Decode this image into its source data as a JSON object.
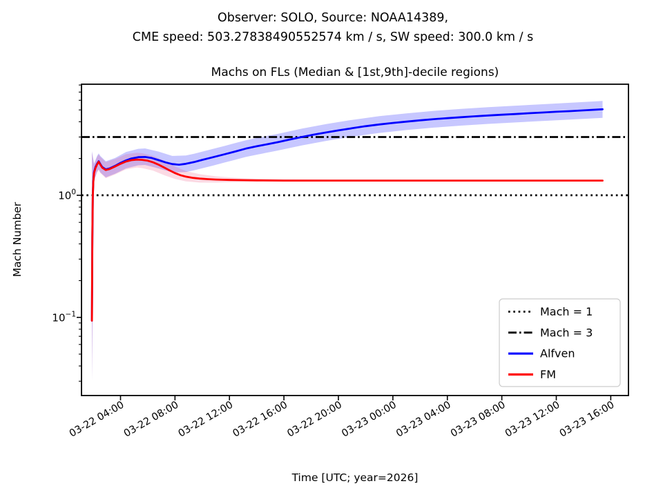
{
  "figure": {
    "suptitle_line1": "Observer: SOLO, Source: NOAA14389,",
    "suptitle_line2": "CME speed: 503.27838490552574 km / s, SW speed: 300.0 km / s",
    "axes_title": "Machs on FLs (Median & [1st,9th]-decile regions)",
    "xlabel": "Time [UTC; year=2026]",
    "ylabel": "Mach Number"
  },
  "legend": {
    "items": [
      {
        "label": "Mach = 1",
        "style": "dotted",
        "color": "#000000"
      },
      {
        "label": "Mach = 3",
        "style": "dashdot",
        "color": "#000000"
      },
      {
        "label": "Alfven",
        "style": "solid",
        "color": "#0000ff"
      },
      {
        "label": "FM",
        "style": "solid",
        "color": "#ff0000"
      }
    ]
  },
  "chart_data": {
    "type": "line",
    "title": "Machs on FLs (Median & [1st,9th]-decile regions)",
    "xlabel": "Time [UTC; year=2026]",
    "ylabel": "Mach Number",
    "x_unit": "hours since 2026-03-22 00:00 UTC",
    "y_scale": "log",
    "xlim": [
      1.135,
      41.3
    ],
    "ylim": [
      0.0229,
      8.12
    ],
    "x_ticks": [
      {
        "t": 4,
        "label": "03-22 04:00"
      },
      {
        "t": 8,
        "label": "03-22 08:00"
      },
      {
        "t": 12,
        "label": "03-22 12:00"
      },
      {
        "t": 16,
        "label": "03-22 16:00"
      },
      {
        "t": 20,
        "label": "03-22 20:00"
      },
      {
        "t": 24,
        "label": "03-23 00:00"
      },
      {
        "t": 28,
        "label": "03-23 04:00"
      },
      {
        "t": 32,
        "label": "03-23 08:00"
      },
      {
        "t": 36,
        "label": "03-23 12:00"
      },
      {
        "t": 40,
        "label": "03-23 16:00"
      }
    ],
    "y_ticks": [
      {
        "v": 1,
        "base": "10",
        "exp": "0"
      },
      {
        "v": 0.1,
        "base": "10",
        "exp": "−1"
      }
    ],
    "y_minor_ticks": [
      0.03,
      0.04,
      0.05,
      0.06,
      0.07,
      0.08,
      0.09,
      0.2,
      0.3,
      0.4,
      0.5,
      0.6,
      0.7,
      0.8,
      0.9,
      2,
      3,
      4,
      5,
      6,
      7,
      8
    ],
    "ref_lines": [
      {
        "label": "Mach = 1",
        "value": 1,
        "style": "dotted",
        "color": "#000000"
      },
      {
        "label": "Mach = 3",
        "value": 3,
        "style": "dashdot",
        "color": "#000000"
      }
    ],
    "series": [
      {
        "name": "Alfven",
        "color": "#0000ff",
        "band_color": "#0000ff",
        "band_alpha": 0.22,
        "points": [
          [
            1.9,
            0.094
          ],
          [
            1.93,
            0.45
          ],
          [
            1.96,
            0.95
          ],
          [
            2.0,
            1.3
          ],
          [
            2.06,
            1.55
          ],
          [
            2.16,
            1.7
          ],
          [
            2.28,
            1.81
          ],
          [
            2.4,
            1.9
          ],
          [
            2.52,
            1.8
          ],
          [
            2.66,
            1.7
          ],
          [
            2.92,
            1.63
          ],
          [
            3.2,
            1.66
          ],
          [
            3.6,
            1.74
          ],
          [
            4.0,
            1.84
          ],
          [
            4.4,
            1.93
          ],
          [
            4.8,
            2.0
          ],
          [
            5.3,
            2.05
          ],
          [
            5.8,
            2.06
          ],
          [
            6.3,
            2.02
          ],
          [
            6.8,
            1.94
          ],
          [
            7.3,
            1.86
          ],
          [
            7.8,
            1.8
          ],
          [
            8.3,
            1.78
          ],
          [
            8.8,
            1.81
          ],
          [
            9.4,
            1.87
          ],
          [
            10.0,
            1.95
          ],
          [
            10.8,
            2.05
          ],
          [
            11.6,
            2.16
          ],
          [
            12.4,
            2.28
          ],
          [
            13.2,
            2.41
          ],
          [
            14.0,
            2.52
          ],
          [
            14.8,
            2.62
          ],
          [
            15.6,
            2.73
          ],
          [
            16.4,
            2.86
          ],
          [
            17.3,
            3.0
          ],
          [
            18.2,
            3.14
          ],
          [
            19.1,
            3.27
          ],
          [
            20.0,
            3.4
          ],
          [
            21.0,
            3.54
          ],
          [
            22.0,
            3.68
          ],
          [
            23.0,
            3.8
          ],
          [
            24.0,
            3.91
          ],
          [
            25.0,
            4.01
          ],
          [
            26.0,
            4.11
          ],
          [
            27.0,
            4.2
          ],
          [
            28.0,
            4.28
          ],
          [
            29.0,
            4.36
          ],
          [
            30.0,
            4.43
          ],
          [
            31.0,
            4.5
          ],
          [
            32.0,
            4.57
          ],
          [
            33.0,
            4.63
          ],
          [
            34.0,
            4.7
          ],
          [
            35.0,
            4.76
          ],
          [
            36.0,
            4.83
          ],
          [
            37.0,
            4.89
          ],
          [
            38.0,
            4.96
          ],
          [
            39.4,
            5.06
          ]
        ],
        "band": [
          [
            1.9,
            0.03,
            2.3
          ],
          [
            2.06,
            1.32,
            1.82
          ],
          [
            2.28,
            1.56,
            2.1
          ],
          [
            2.4,
            1.63,
            2.2
          ],
          [
            2.52,
            1.54,
            2.1
          ],
          [
            2.92,
            1.4,
            1.9
          ],
          [
            3.6,
            1.5,
            2.02
          ],
          [
            4.4,
            1.66,
            2.26
          ],
          [
            5.3,
            1.76,
            2.4
          ],
          [
            5.8,
            1.77,
            2.42
          ],
          [
            6.8,
            1.66,
            2.28
          ],
          [
            7.8,
            1.54,
            2.1
          ],
          [
            8.8,
            1.55,
            2.12
          ],
          [
            9.4,
            1.6,
            2.19
          ],
          [
            10.8,
            1.75,
            2.4
          ],
          [
            11.6,
            1.85,
            2.53
          ],
          [
            12.4,
            1.95,
            2.67
          ],
          [
            13.2,
            2.06,
            2.82
          ],
          [
            14.0,
            2.15,
            2.95
          ],
          [
            15.6,
            2.33,
            3.19
          ],
          [
            17.3,
            2.56,
            3.51
          ],
          [
            19.1,
            2.79,
            3.83
          ],
          [
            21.0,
            3.02,
            4.14
          ],
          [
            23.0,
            3.24,
            4.45
          ],
          [
            25.0,
            3.42,
            4.69
          ],
          [
            27.0,
            3.58,
            4.91
          ],
          [
            29.0,
            3.72,
            5.1
          ],
          [
            31.0,
            3.84,
            5.27
          ],
          [
            33.0,
            3.95,
            5.42
          ],
          [
            35.0,
            4.06,
            5.57
          ],
          [
            37.0,
            4.17,
            5.72
          ],
          [
            39.4,
            4.3,
            5.92
          ]
        ]
      },
      {
        "name": "FM",
        "color": "#ff0000",
        "band_color": "#e8336a",
        "band_alpha": 0.18,
        "points": [
          [
            1.9,
            0.094
          ],
          [
            1.93,
            0.45
          ],
          [
            1.96,
            0.95
          ],
          [
            2.0,
            1.28
          ],
          [
            2.06,
            1.52
          ],
          [
            2.16,
            1.67
          ],
          [
            2.28,
            1.79
          ],
          [
            2.4,
            1.88
          ],
          [
            2.52,
            1.78
          ],
          [
            2.66,
            1.68
          ],
          [
            2.92,
            1.61
          ],
          [
            3.2,
            1.64
          ],
          [
            3.6,
            1.72
          ],
          [
            4.0,
            1.81
          ],
          [
            4.4,
            1.89
          ],
          [
            4.8,
            1.94
          ],
          [
            5.2,
            1.96
          ],
          [
            5.6,
            1.95
          ],
          [
            6.0,
            1.92
          ],
          [
            6.4,
            1.86
          ],
          [
            6.8,
            1.78
          ],
          [
            7.2,
            1.69
          ],
          [
            7.6,
            1.6
          ],
          [
            8.0,
            1.52
          ],
          [
            8.4,
            1.46
          ],
          [
            8.8,
            1.42
          ],
          [
            9.3,
            1.39
          ],
          [
            9.8,
            1.37
          ],
          [
            10.4,
            1.355
          ],
          [
            11.0,
            1.345
          ],
          [
            12.0,
            1.335
          ],
          [
            13.0,
            1.33
          ],
          [
            14.0,
            1.325
          ],
          [
            16.0,
            1.32
          ],
          [
            20.0,
            1.32
          ],
          [
            24.0,
            1.32
          ],
          [
            28.0,
            1.32
          ],
          [
            32.0,
            1.32
          ],
          [
            36.0,
            1.32
          ],
          [
            39.4,
            1.32
          ]
        ],
        "band": [
          [
            1.9,
            0.03,
            2.26
          ],
          [
            2.06,
            1.3,
            1.78
          ],
          [
            2.28,
            1.54,
            2.06
          ],
          [
            2.4,
            1.61,
            2.16
          ],
          [
            2.52,
            1.52,
            2.06
          ],
          [
            2.92,
            1.38,
            1.87
          ],
          [
            3.6,
            1.48,
            1.98
          ],
          [
            4.4,
            1.63,
            2.17
          ],
          [
            5.2,
            1.69,
            2.23
          ],
          [
            5.6,
            1.67,
            2.21
          ],
          [
            6.4,
            1.59,
            2.1
          ],
          [
            7.2,
            1.46,
            1.92
          ],
          [
            8.0,
            1.36,
            1.72
          ],
          [
            8.8,
            1.3,
            1.58
          ],
          [
            9.8,
            1.27,
            1.49
          ],
          [
            11.0,
            1.27,
            1.43
          ],
          [
            12.0,
            1.28,
            1.4
          ],
          [
            13.0,
            1.285,
            1.38
          ],
          [
            14.0,
            1.29,
            1.37
          ],
          [
            16.0,
            1.295,
            1.355
          ],
          [
            20.0,
            1.3,
            1.345
          ],
          [
            25.0,
            1.305,
            1.34
          ],
          [
            30.0,
            1.305,
            1.335
          ],
          [
            35.0,
            1.305,
            1.335
          ],
          [
            39.4,
            1.305,
            1.335
          ]
        ]
      }
    ],
    "legend_position": "lower right",
    "grid": false
  }
}
